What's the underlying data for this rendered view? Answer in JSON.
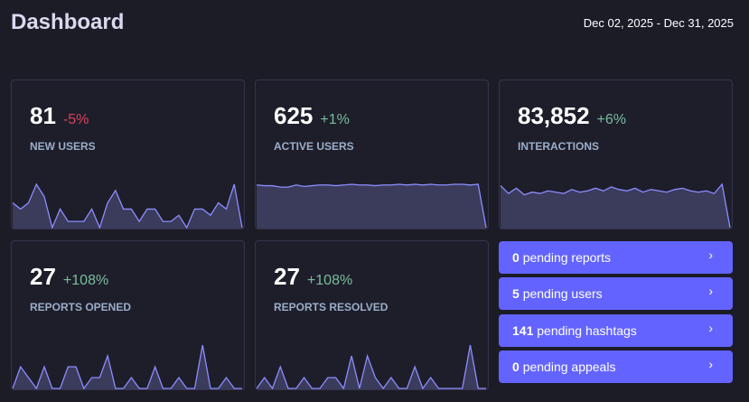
{
  "header": {
    "title": "Dashboard",
    "date_range": "Dec 02, 2025 - Dec 31, 2025"
  },
  "colors": {
    "accent": "#6364ff",
    "positive": "#79bd9a",
    "negative": "#df405a",
    "spark_line": "#8c8dff",
    "spark_fill": "#3b3b5c"
  },
  "metrics": [
    {
      "value": "81",
      "change": "-5%",
      "trend": "neg",
      "label": "NEW USERS",
      "spark": [
        4,
        3,
        4,
        7,
        5,
        0,
        3,
        1,
        1,
        1,
        3,
        0,
        4,
        6,
        3,
        3,
        1,
        3,
        3,
        1,
        1,
        2,
        0,
        3,
        3,
        2,
        4,
        3,
        7,
        0
      ]
    },
    {
      "value": "625",
      "change": "+1%",
      "trend": "pos",
      "label": "ACTIVE USERS",
      "spark": [
        620,
        619,
        619,
        617,
        617,
        620,
        618,
        619,
        620,
        620,
        619,
        620,
        621,
        620,
        620,
        619,
        620,
        620,
        621,
        620,
        621,
        620,
        621,
        620,
        620,
        621,
        621,
        620,
        621,
        560
      ]
    },
    {
      "value": "83,852",
      "change": "+6%",
      "trend": "pos",
      "label": "INTERACTIONS",
      "spark": [
        3200,
        2600,
        3000,
        2500,
        2700,
        2600,
        2800,
        2700,
        2600,
        2900,
        2700,
        2800,
        3000,
        2800,
        3100,
        2900,
        2800,
        3000,
        2700,
        2900,
        2800,
        2700,
        2900,
        3000,
        2800,
        2700,
        2800,
        2600,
        3300,
        0
      ]
    },
    {
      "value": "27",
      "change": "+108%",
      "trend": "pos",
      "label": "REPORTS OPENED",
      "spark": [
        0,
        2,
        1,
        0,
        2,
        0,
        0,
        2,
        2,
        0,
        1,
        1,
        3,
        0,
        0,
        1,
        0,
        0,
        2,
        0,
        0,
        1,
        0,
        0,
        4,
        0,
        0,
        1,
        0,
        0
      ]
    },
    {
      "value": "27",
      "change": "+108%",
      "trend": "pos",
      "label": "REPORTS RESOLVED",
      "spark": [
        0,
        1,
        0,
        2,
        0,
        0,
        1,
        0,
        0,
        1,
        1,
        0,
        3,
        0,
        3,
        1,
        0,
        1,
        0,
        0,
        2,
        0,
        1,
        0,
        0,
        0,
        0,
        4,
        0,
        0
      ]
    }
  ],
  "pending": [
    {
      "count": "0",
      "label": "pending reports"
    },
    {
      "count": "5",
      "label": "pending users"
    },
    {
      "count": "141",
      "label": "pending hashtags"
    },
    {
      "count": "0",
      "label": "pending appeals"
    }
  ]
}
